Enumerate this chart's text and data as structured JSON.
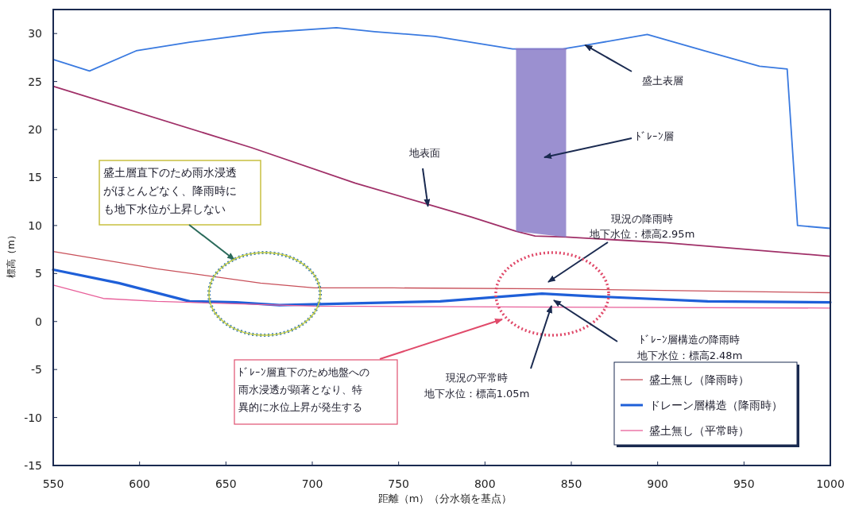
{
  "chart_data": {
    "type": "line",
    "xlabel": "距離（m）（分水嶺を基点）",
    "ylabel": "標高（m）",
    "xlim": [
      550,
      1000
    ],
    "ylim": [
      -15,
      32.5
    ],
    "xticks": [
      550,
      600,
      650,
      700,
      750,
      800,
      850,
      900,
      950,
      1000
    ],
    "yticks": [
      -15,
      -10,
      -5,
      0,
      5,
      10,
      15,
      20,
      25,
      30
    ],
    "grid": false,
    "legend": "bottom right",
    "line_style": "solid",
    "marker": "none",
    "series": [
      {
        "color": "#8a7cc8",
        "x": [
          818,
          847
        ],
        "values": [
          28.4,
          28.4
        ],
        "lower": [
          9.4,
          8.8
        ],
        "upper": [
          28.4,
          28.4
        ]
      },
      {
        "color": "#3a7ae0",
        "x": [
          550,
          571,
          598,
          629,
          672,
          714,
          736,
          771,
          816,
          845,
          859,
          894,
          927,
          959,
          975,
          981,
          1000
        ],
        "values": [
          27.3,
          26.1,
          28.2,
          29.1,
          30.1,
          30.6,
          30.2,
          29.7,
          28.4,
          28.4,
          28.8,
          29.9,
          28.2,
          26.6,
          26.3,
          10.0,
          9.7
        ]
      },
      {
        "color": "#a03068",
        "x": [
          550,
          665,
          725,
          792,
          818,
          829,
          847,
          905,
          1000
        ],
        "values": [
          24.5,
          18.1,
          14.4,
          10.9,
          9.4,
          8.9,
          8.8,
          8.2,
          6.8
        ]
      },
      {
        "name": "盛土無し（降雨時）",
        "color": "#c8505a",
        "x": [
          550,
          610,
          670,
          701,
          747,
          838,
          1000
        ],
        "values": [
          7.3,
          5.5,
          4.0,
          3.5,
          3.5,
          3.4,
          3.0
        ]
      },
      {
        "name": "ドレーン層構造（降雨時）",
        "color": "#1e5fd8",
        "x": [
          550,
          588,
          629,
          656,
          681,
          724,
          774,
          810,
          833,
          865,
          929,
          1000
        ],
        "values": [
          5.4,
          4.0,
          2.1,
          2.0,
          1.7,
          1.9,
          2.1,
          2.6,
          2.9,
          2.6,
          2.1,
          2.0
        ]
      },
      {
        "name": "盛土無し（平常時）",
        "color": "#e8609a",
        "x": [
          550,
          579,
          610,
          701,
          838,
          1000
        ],
        "values": [
          3.8,
          2.4,
          2.1,
          1.6,
          1.5,
          1.4
        ]
      }
    ],
    "annotations": [
      {
        "text": "盛土表層",
        "x": 858,
        "y": 28.8
      },
      "ﾄﾞﾚｰﾝ層",
      {
        "text": "地表面",
        "x": 767,
        "y": 12
      },
      "盛土層直下のため雨水浸透がほとんどなく、降雨時にも地下水位が上昇しない",
      "現況の降雨時地下水位：標高2.95m",
      "ﾄﾞﾚｰﾝ層直下のため地盤への雨水浸透が顕著となり、特異的に水位上昇が発生する",
      "ﾄﾞﾚｰﾝ層構造の降雨時地下水位：標高2.48m",
      "現況の平常時地下水位：標高1.05m"
    ]
  }
}
